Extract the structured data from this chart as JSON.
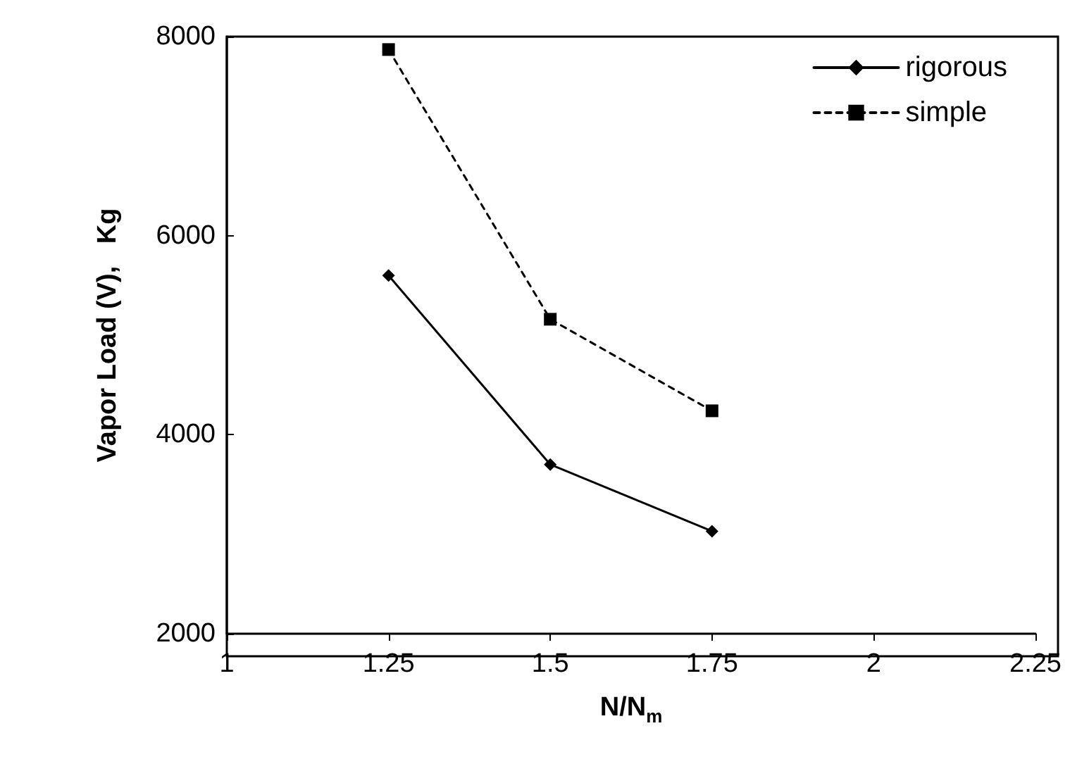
{
  "chart_data": {
    "type": "line",
    "xlabel": "N/N$_{m}$",
    "ylabel": "Vapor Load (V),   Kg",
    "x": [
      1.25,
      1.5,
      1.75
    ],
    "series": [
      {
        "name": "rigorous",
        "color": "#000000",
        "values": [
          5600,
          3700,
          3030
        ],
        "marker": "diamond",
        "line_style": "solid"
      },
      {
        "name": "simple",
        "color": "#000000",
        "values": [
          7870,
          5160,
          4240
        ],
        "marker": "square",
        "line_style": "dashed"
      }
    ],
    "xlim": [
      1,
      2.25
    ],
    "xticks": [
      1,
      1.25,
      1.5,
      1.75,
      2,
      2.25
    ],
    "ylim": [
      2000,
      8000
    ],
    "yticks": [
      2000,
      4000,
      6000,
      8000
    ],
    "grid": false,
    "legend": "top right"
  }
}
